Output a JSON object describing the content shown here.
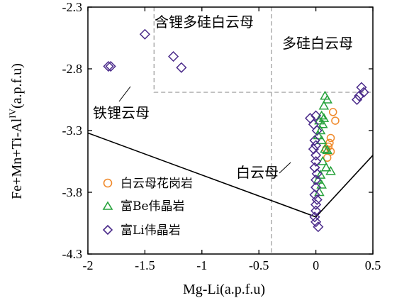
{
  "chart_data": {
    "type": "scatter",
    "xlabel": "Mg-Li(a.p.f.u)",
    "ylabel_main": "Fe+Mn+Ti-Al",
    "ylabel_sup": "IV",
    "ylabel_tail": "(a.p.f.u)",
    "xlim": [
      -2,
      0.5
    ],
    "ylim": [
      -4.3,
      -2.3
    ],
    "x_ticks": [
      {
        "value": -2,
        "label": "-2"
      },
      {
        "value": -1.5,
        "label": "-1.5"
      },
      {
        "value": -1,
        "label": "-1"
      },
      {
        "value": -0.5,
        "label": "-0.5"
      },
      {
        "value": 0,
        "label": "0"
      },
      {
        "value": 0.5,
        "label": "0.5"
      }
    ],
    "y_ticks": [
      {
        "value": -2.3,
        "label": "-2.3"
      },
      {
        "value": -2.8,
        "label": "-2.8"
      },
      {
        "value": -3.3,
        "label": "-3.3"
      },
      {
        "value": -3.8,
        "label": "-3.8"
      },
      {
        "value": -4.3,
        "label": "-4.3"
      }
    ],
    "regions": [
      {
        "label": "含锂多硅白云母"
      },
      {
        "label": "多硅白云母"
      },
      {
        "label": "铁锂云母"
      },
      {
        "label": "白云母"
      }
    ],
    "dashed_lines": [
      {
        "points": [
          [
            -1.42,
            -2.3
          ],
          [
            -1.42,
            -2.99
          ],
          [
            0.5,
            -2.99
          ]
        ]
      },
      {
        "points": [
          [
            -0.39,
            -2.3
          ],
          [
            -0.39,
            -4.3
          ]
        ]
      }
    ],
    "boundary_lines": [
      {
        "points": [
          [
            -2,
            -3.32
          ],
          [
            0,
            -4.0
          ],
          [
            0.5,
            -3.5
          ]
        ]
      }
    ],
    "series": [
      {
        "name": "白云母花岗岩",
        "marker": "circle",
        "color": "#f08a2c",
        "points": [
          [
            0.15,
            -3.15
          ],
          [
            0.17,
            -3.22
          ],
          [
            0.13,
            -3.36
          ],
          [
            0.12,
            -3.4
          ],
          [
            0.11,
            -3.43
          ],
          [
            0.13,
            -3.47
          ],
          [
            0.1,
            -3.52
          ],
          [
            0.09,
            -3.45
          ]
        ]
      },
      {
        "name": "富Be伟晶岩",
        "marker": "triangle",
        "color": "#27a23c",
        "points": [
          [
            0.08,
            -3.02
          ],
          [
            0.1,
            -3.05
          ],
          [
            0.07,
            -3.1
          ],
          [
            0.05,
            -3.18
          ],
          [
            0.07,
            -3.2
          ],
          [
            0.03,
            -3.22
          ],
          [
            0.06,
            -3.25
          ],
          [
            0.04,
            -3.3
          ],
          [
            0.02,
            -3.34
          ],
          [
            0.05,
            -3.38
          ],
          [
            0.08,
            -3.45
          ],
          [
            0.1,
            -3.46
          ],
          [
            0.06,
            -3.55
          ],
          [
            0.09,
            -3.6
          ],
          [
            0.13,
            -3.63
          ],
          [
            0.04,
            -3.66
          ],
          [
            0.02,
            -3.7
          ],
          [
            0.05,
            -3.74
          ],
          [
            0.03,
            -3.8
          ]
        ]
      },
      {
        "name": "富Li伟晶岩",
        "marker": "diamond",
        "color": "#4a2a8a",
        "points": [
          [
            -1.5,
            -2.52
          ],
          [
            -1.25,
            -2.7
          ],
          [
            -1.18,
            -2.79
          ],
          [
            -1.8,
            -2.78
          ],
          [
            -1.82,
            -2.78
          ],
          [
            0.4,
            -2.95
          ],
          [
            0.42,
            -2.99
          ],
          [
            0.38,
            -3.02
          ],
          [
            0.36,
            -3.05
          ],
          [
            -0.05,
            -3.2
          ],
          [
            0.0,
            -3.18
          ],
          [
            -0.02,
            -3.25
          ],
          [
            0.01,
            -3.3
          ],
          [
            -0.01,
            -3.38
          ],
          [
            0.0,
            -3.42
          ],
          [
            -0.02,
            -3.45
          ],
          [
            0.0,
            -3.5
          ],
          [
            0.0,
            -3.55
          ],
          [
            -0.01,
            -3.6
          ],
          [
            0.01,
            -3.65
          ],
          [
            0.0,
            -3.7
          ],
          [
            0.0,
            -3.76
          ],
          [
            -0.01,
            -3.82
          ],
          [
            0.01,
            -3.86
          ],
          [
            0.0,
            -3.9
          ],
          [
            0.0,
            -3.95
          ],
          [
            -0.01,
            -4.0
          ],
          [
            0.0,
            -4.04
          ],
          [
            0.02,
            -4.08
          ]
        ]
      }
    ],
    "legend": {
      "position": "bottom-left"
    },
    "grid": false
  }
}
